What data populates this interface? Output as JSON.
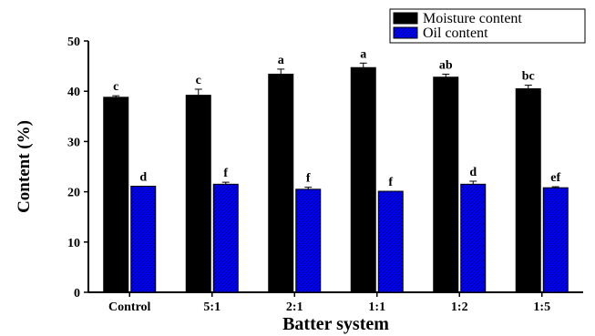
{
  "chart_data": {
    "type": "bar",
    "xlabel": "Batter system",
    "ylabel": "Content (%)",
    "categories": [
      "Control",
      "5:1",
      "2:1",
      "1:1",
      "1:2",
      "1:5"
    ],
    "ylim": [
      0,
      50
    ],
    "yticks": [
      0,
      10,
      20,
      30,
      40,
      50
    ],
    "legend_position": "top-right",
    "series": [
      {
        "name": "Moisture content",
        "color": "#000000",
        "pattern": "solid",
        "values": [
          38.8,
          39.2,
          43.4,
          44.7,
          42.8,
          40.5
        ],
        "errors": [
          0.3,
          1.2,
          1.0,
          0.9,
          0.6,
          0.7
        ],
        "letters": [
          "c",
          "c",
          "a",
          "a",
          "ab",
          "bc"
        ]
      },
      {
        "name": "Oil content",
        "color": "#0000ff",
        "pattern": "diagonal-hatch",
        "values": [
          21.1,
          21.5,
          20.5,
          20.1,
          21.5,
          20.8
        ],
        "errors": [
          0.0,
          0.4,
          0.4,
          0.0,
          0.6,
          0.2
        ],
        "letters": [
          "d",
          "f",
          "f",
          "f",
          "d",
          "ef"
        ]
      }
    ]
  }
}
